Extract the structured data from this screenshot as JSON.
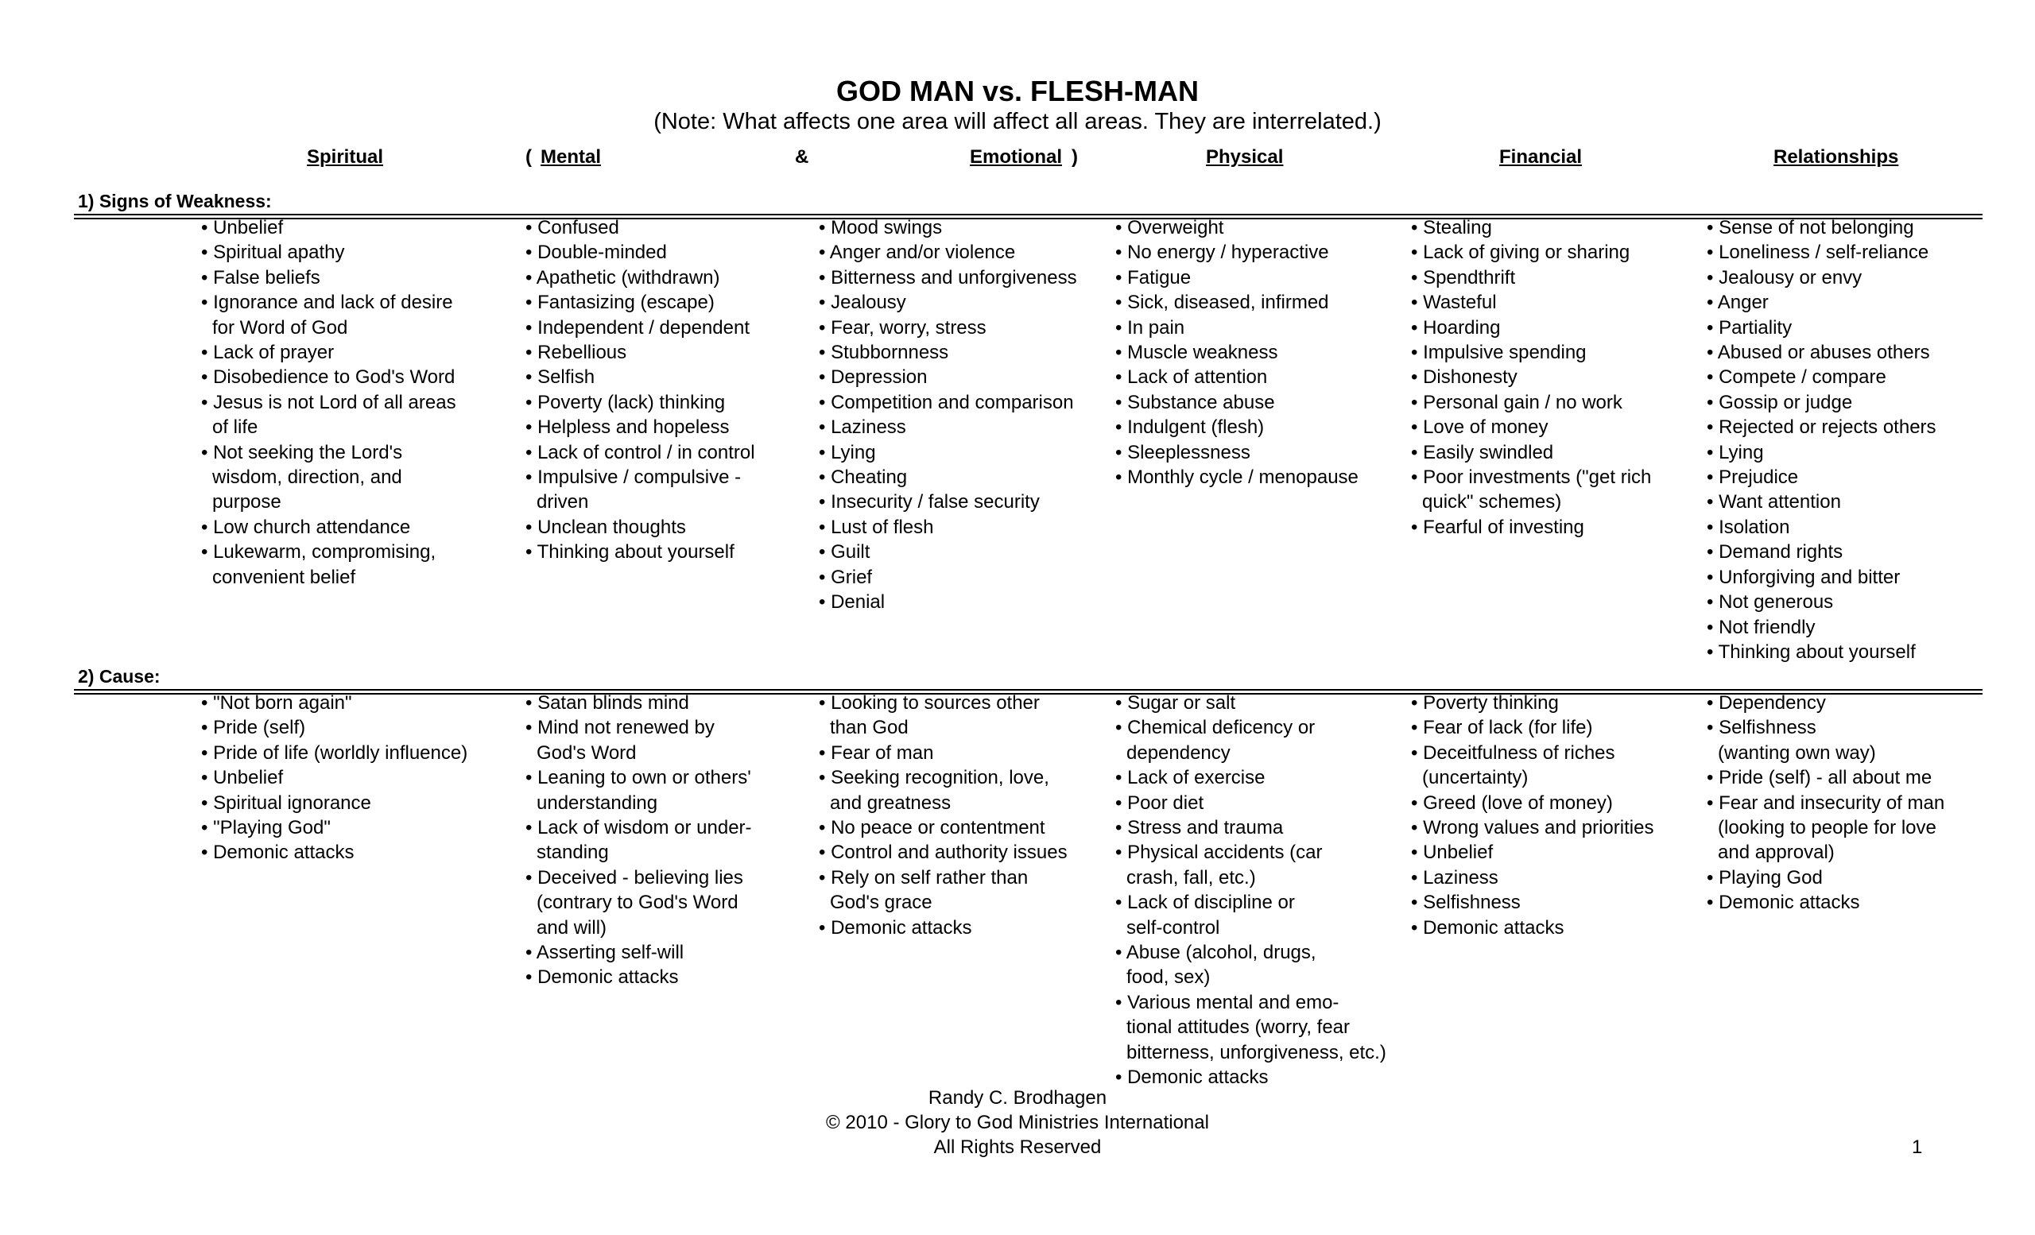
{
  "header": {
    "title": "GOD MAN  vs.  FLESH-MAN",
    "note": "(Note:  What affects one area will affect all areas.  They are interrelated.)"
  },
  "columns": {
    "spiritual": "Spiritual",
    "open_paren": "(",
    "mental": "Mental",
    "ampersand": "&",
    "emotional": "Emotional",
    "close_paren": ")",
    "physical": "Physical",
    "financial": "Financial",
    "relationships": "Relationships"
  },
  "sections": [
    {
      "label": "1)   Signs of  Weakness:",
      "columns": [
        [
          "• Unbelief",
          "• Spiritual apathy",
          "• False beliefs",
          "• Ignorance and lack of desire\nfor Word of God",
          "• Lack of prayer",
          "• Disobedience to God's Word",
          "• Jesus is not Lord of all areas\n of life",
          "• Not seeking the Lord's\nwisdom, direction, and\npurpose",
          "• Low church attendance",
          "• Lukewarm, compromising,\nconvenient belief"
        ],
        [
          "• Confused",
          "• Double-minded",
          "• Apathetic (withdrawn)",
          "• Fantasizing (escape)",
          "• Independent / dependent",
          "• Rebellious",
          "• Selfish",
          "• Poverty (lack) thinking",
          "• Helpless and hopeless",
          "• Lack of control / in control",
          "• Impulsive / compulsive -\ndriven",
          "• Unclean thoughts",
          "• Thinking about yourself"
        ],
        [
          "• Mood swings",
          "• Anger and/or violence",
          "• Bitterness and unforgiveness",
          "• Jealousy",
          "• Fear, worry, stress",
          "• Stubbornness",
          "• Depression",
          "• Competition and comparison",
          "• Laziness",
          "• Lying",
          "• Cheating",
          "• Insecurity / false security",
          "• Lust of flesh",
          "• Guilt",
          "• Grief",
          "• Denial"
        ],
        [
          "• Overweight",
          "• No energy / hyperactive",
          "• Fatigue",
          "• Sick, diseased, infirmed",
          "• In pain",
          "• Muscle weakness",
          "• Lack of attention",
          "• Substance abuse",
          "• Indulgent (flesh)",
          "• Sleeplessness",
          "• Monthly cycle / menopause"
        ],
        [
          "• Stealing",
          "• Lack of giving or sharing",
          "• Spendthrift",
          "• Wasteful",
          "• Hoarding",
          "• Impulsive spending",
          "• Dishonesty",
          "• Personal gain / no work",
          "• Love of money",
          "• Easily swindled",
          "• Poor investments (\"get rich\nquick\" schemes)",
          "• Fearful of investing"
        ],
        [
          "• Sense of not belonging",
          "• Loneliness / self-reliance",
          "• Jealousy or envy",
          "• Anger",
          "• Partiality",
          "• Abused or abuses others",
          "• Compete / compare",
          "• Gossip or judge",
          "• Rejected or rejects others",
          "• Lying",
          "• Prejudice",
          "• Want attention",
          "• Isolation",
          "• Demand rights",
          "• Unforgiving and bitter",
          "• Not generous",
          "• Not friendly",
          "• Thinking about yourself"
        ]
      ]
    },
    {
      "label": "2)   Cause:",
      "columns": [
        [
          "• \"Not born again\"",
          "• Pride (self)",
          "• Pride of life (worldly influence)",
          "• Unbelief",
          "• Spiritual ignorance",
          "• \"Playing God\"",
          "• Demonic attacks"
        ],
        [
          "• Satan blinds mind",
          "• Mind not renewed by\nGod's Word",
          "• Leaning to own or others'\nunderstanding",
          "• Lack of wisdom or under-\nstanding",
          "• Deceived - believing lies\n(contrary to God's Word\nand will)",
          "• Asserting self-will",
          "• Demonic attacks"
        ],
        [
          "• Looking to sources other\nthan God",
          "• Fear of man",
          "• Seeking recognition, love,\nand greatness",
          "• No peace or contentment",
          "• Control and authority issues",
          "• Rely on self rather than\nGod's grace",
          "• Demonic attacks"
        ],
        [
          "• Sugar or salt",
          "• Chemical deficency or\ndependency",
          "• Lack of exercise",
          "• Poor diet",
          "• Stress and trauma",
          "• Physical accidents (car\ncrash, fall, etc.)",
          "• Lack of discipline or\nself-control",
          "• Abuse (alcohol, drugs,\nfood, sex)",
          "• Various mental and emo-\ntional attitudes (worry, fear\nbitterness, unforgiveness, etc.)",
          "• Demonic attacks"
        ],
        [
          "• Poverty thinking",
          "• Fear of lack (for life)",
          "• Deceitfulness of riches\n(uncertainty)",
          "• Greed (love of money)",
          "• Wrong values and priorities",
          "• Unbelief",
          "• Laziness",
          "• Selfishness",
          "• Demonic attacks"
        ],
        [
          "• Dependency",
          "• Selfishness\n(wanting own way)",
          "• Pride (self) - all about me",
          "• Fear and insecurity of man\n(looking to people for love\nand approval)",
          "• Playing God",
          "• Demonic attacks"
        ]
      ]
    }
  ],
  "footer": {
    "author": "Randy C. Brodhagen",
    "copyright": "© 2010 - Glory to God Ministries International",
    "rights": "All Rights Reserved",
    "page_number": "1"
  }
}
